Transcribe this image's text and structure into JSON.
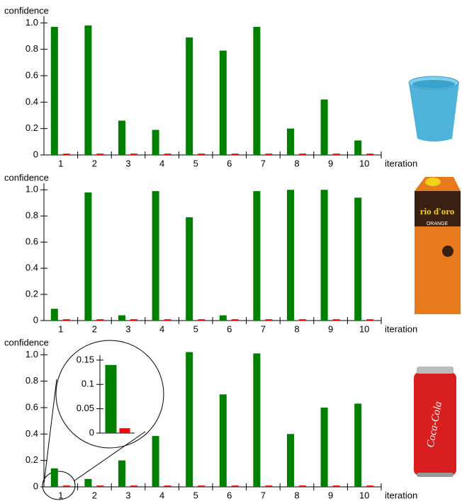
{
  "chart_data": [
    {
      "type": "bar",
      "ylabel": "confidence",
      "xlabel": "iteration",
      "categories": [
        "1",
        "2",
        "3",
        "4",
        "5",
        "6",
        "7",
        "8",
        "9",
        "10"
      ],
      "series": [
        {
          "color": "#008000",
          "values": [
            0.97,
            0.98,
            0.26,
            0.19,
            0.89,
            0.79,
            0.97,
            0.2,
            0.42,
            0.11
          ]
        },
        {
          "color": "#ff0000",
          "values": [
            0.01,
            0.01,
            0.01,
            0.01,
            0.01,
            0.01,
            0.01,
            0.01,
            0.01,
            0.01
          ]
        }
      ],
      "ylim": [
        0,
        1.05
      ],
      "yticks": [
        0,
        0.2,
        0.4,
        0.6,
        0.8,
        {
          "value": 1,
          "label": "1.0"
        }
      ]
    },
    {
      "type": "bar",
      "ylabel": "confidence",
      "xlabel": "iteration",
      "categories": [
        "1",
        "2",
        "3",
        "4",
        "5",
        "6",
        "7",
        "8",
        "9",
        "10"
      ],
      "series": [
        {
          "color": "#008000",
          "values": [
            0.09,
            0.98,
            0.04,
            0.99,
            0.79,
            0.04,
            0.99,
            1.0,
            1.0,
            0.94
          ]
        },
        {
          "color": "#ff0000",
          "values": [
            0.01,
            0.01,
            0.01,
            0.01,
            0.01,
            0.01,
            0.01,
            0.01,
            0.01,
            0.01
          ]
        }
      ],
      "ylim": [
        0,
        1.05
      ],
      "yticks": [
        0,
        0.2,
        0.4,
        0.6,
        0.8,
        {
          "value": 1,
          "label": "1.0"
        }
      ]
    },
    {
      "type": "bar",
      "ylabel": "confidence",
      "xlabel": "iteration",
      "categories": [
        "1",
        "2",
        "3",
        "4",
        "5",
        "6",
        "7",
        "8",
        "9",
        "10"
      ],
      "series": [
        {
          "color": "#008000",
          "values": [
            0.14,
            0.06,
            0.2,
            0.385,
            1.02,
            0.7,
            1.01,
            0.4,
            0.6,
            0.63
          ]
        },
        {
          "color": "#ff0000",
          "values": [
            0.01,
            0.01,
            0.01,
            0.01,
            0.01,
            0.01,
            0.01,
            0.01,
            0.01,
            0.01
          ]
        }
      ],
      "ylim": [
        0,
        1.05
      ],
      "yticks": [
        0,
        0.2,
        0.4,
        0.6,
        0.8,
        {
          "value": 1,
          "label": "1.0"
        }
      ]
    },
    {
      "type": "bar",
      "categories": [
        null
      ],
      "series": [
        {
          "color": "#008000",
          "values": [
            0.14
          ]
        },
        {
          "color": "#ff0000",
          "values": [
            0.01
          ]
        }
      ],
      "ylim": [
        0,
        0.16
      ],
      "yticks": [
        0,
        0.05,
        0.1,
        0.15
      ]
    }
  ],
  "image_texts": [
    "rio d'oro",
    "ORANGE",
    "Coca-Cola"
  ]
}
